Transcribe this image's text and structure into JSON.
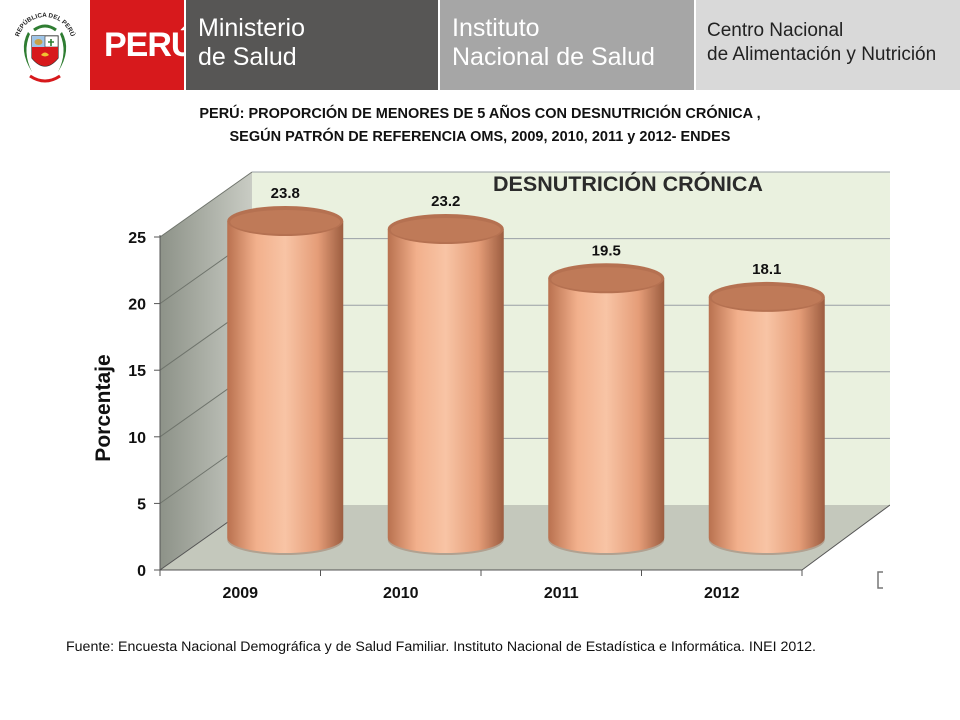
{
  "header": {
    "crest_text": "REPÚBLICA DEL PERÚ",
    "peru": "PERÚ",
    "ministerio": [
      "Ministerio",
      "de Salud"
    ],
    "instituto": [
      "Instituto",
      "Nacional de Salud"
    ],
    "centro": [
      "Centro Nacional",
      "de Alimentación y Nutrición"
    ]
  },
  "title": [
    "PERÚ: PROPORCIÓN DE MENORES DE 5 AÑOS CON DESNUTRICIÓN CRÓNICA ,",
    "SEGÚN PATRÓN DE REFERENCIA OMS, 2009, 2010, 2011 y 2012- ENDES"
  ],
  "source": "Fuente: Encuesta Nacional Demográfica y de Salud Familiar. Instituto Nacional de Estadística e Informática. INEI 2012.",
  "colors": {
    "bar": "#eba27c",
    "bar_dark": "#b57151",
    "wall": "#eaf1df",
    "floor": "#c4c8bc",
    "red": "#d7191c"
  },
  "chart_data": {
    "type": "bar",
    "title": "DESNUTRICIÓN CRÓNICA",
    "categories": [
      "2009",
      "2010",
      "2011",
      "2012"
    ],
    "values": [
      23.8,
      23.2,
      19.5,
      18.1
    ],
    "value_labels": [
      "23.8",
      "23.2",
      "19.5",
      "18.1"
    ],
    "ylabel": "Porcentaje",
    "xlabel": "",
    "ylim": [
      0,
      25
    ],
    "yticks": [
      "0",
      "5",
      "10",
      "15",
      "20",
      "25"
    ],
    "grid": true,
    "style": "3d-cylinder"
  }
}
